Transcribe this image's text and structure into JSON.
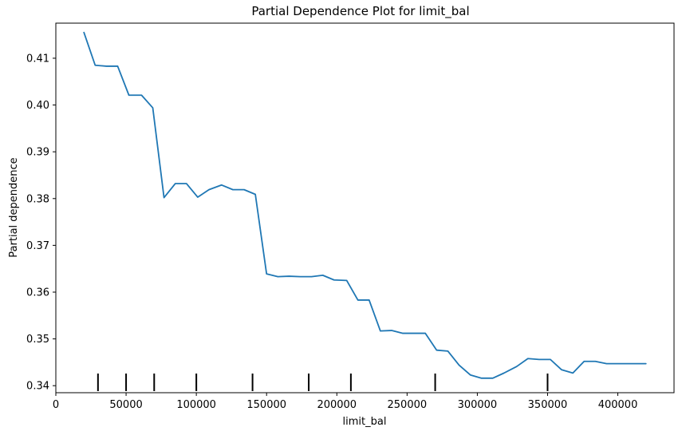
{
  "chart_data": {
    "type": "line",
    "title": "Partial Dependence Plot for limit_bal",
    "xlabel": "limit_bal",
    "ylabel": "Partial dependence",
    "xlim": [
      0,
      440000
    ],
    "ylim": [
      0.3385,
      0.4175
    ],
    "x_ticks": [
      0,
      50000,
      100000,
      150000,
      200000,
      250000,
      300000,
      350000,
      400000
    ],
    "x_tick_labels": [
      "0",
      "50000",
      "100000",
      "150000",
      "200000",
      "250000",
      "300000",
      "350000",
      "400000"
    ],
    "y_ticks": [
      0.34,
      0.35,
      0.36,
      0.37,
      0.38,
      0.39,
      0.4,
      0.41
    ],
    "y_tick_labels": [
      "0.34",
      "0.35",
      "0.36",
      "0.37",
      "0.38",
      "0.39",
      "0.40",
      "0.41"
    ],
    "grid": false,
    "series": [
      {
        "color": "#1f77b4",
        "x": [
          20000,
          28000,
          36000,
          44000,
          52000,
          61000,
          69000,
          77000,
          85000,
          93000,
          101000,
          109000,
          118000,
          126000,
          134000,
          142000,
          150000,
          158000,
          166000,
          174000,
          182000,
          190000,
          198000,
          207000,
          215000,
          223000,
          231000,
          239000,
          247000,
          255000,
          263000,
          271000,
          279000,
          287000,
          295000,
          303000,
          311000,
          319000,
          328000,
          336000,
          344000,
          352000,
          360000,
          368000,
          376000,
          384000,
          392000,
          400000,
          410000,
          420000
        ],
        "values": [
          0.4155,
          0.4085,
          0.4083,
          0.4083,
          0.4021,
          0.4021,
          0.3994,
          0.3802,
          0.3832,
          0.3832,
          0.3803,
          0.3819,
          0.3829,
          0.3819,
          0.3819,
          0.3809,
          0.3639,
          0.3633,
          0.3634,
          0.3633,
          0.3633,
          0.3636,
          0.3626,
          0.3625,
          0.3583,
          0.3583,
          0.3517,
          0.3518,
          0.3512,
          0.3512,
          0.3512,
          0.3476,
          0.3474,
          0.3444,
          0.3423,
          0.3416,
          0.3416,
          0.3427,
          0.3441,
          0.3458,
          0.3456,
          0.3456,
          0.3434,
          0.3427,
          0.3452,
          0.3452,
          0.3447,
          0.3447,
          0.3447,
          0.3447
        ]
      }
    ],
    "deciles": [
      30000,
      50000,
      70000,
      100000,
      140000,
      180000,
      210000,
      270000,
      350000
    ]
  }
}
